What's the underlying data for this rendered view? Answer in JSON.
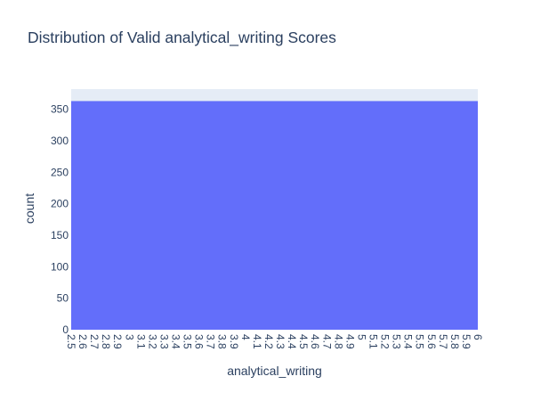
{
  "chart_data": {
    "type": "bar",
    "title": "Distribution of Valid analytical_writing Scores",
    "xlabel": "analytical_writing",
    "ylabel": "count",
    "x_ticks": [
      "2.5",
      "2.6",
      "2.7",
      "2.8",
      "2.9",
      "3",
      "3.1",
      "3.2",
      "3.3",
      "3.4",
      "3.5",
      "3.6",
      "3.7",
      "3.8",
      "3.9",
      "4",
      "4.1",
      "4.2",
      "4.3",
      "4.4",
      "4.5",
      "4.6",
      "4.7",
      "4.8",
      "4.9",
      "5",
      "5.1",
      "5.2",
      "5.3",
      "5.4",
      "5.5",
      "5.6",
      "5.7",
      "5.8",
      "5.9",
      "6"
    ],
    "y_ticks": [
      0,
      50,
      100,
      150,
      200,
      250,
      300,
      350
    ],
    "xlim": [
      2.5,
      6
    ],
    "ylim": [
      0,
      382
    ],
    "bars": [
      {
        "x0": 2.5,
        "x1": 6,
        "value": 363
      }
    ],
    "colors": {
      "bar": "#636efa",
      "plot_bg": "#e5ecf6",
      "grid": "#ffffff",
      "text": "#2a3f5f"
    },
    "grid": true,
    "legend": "none"
  }
}
